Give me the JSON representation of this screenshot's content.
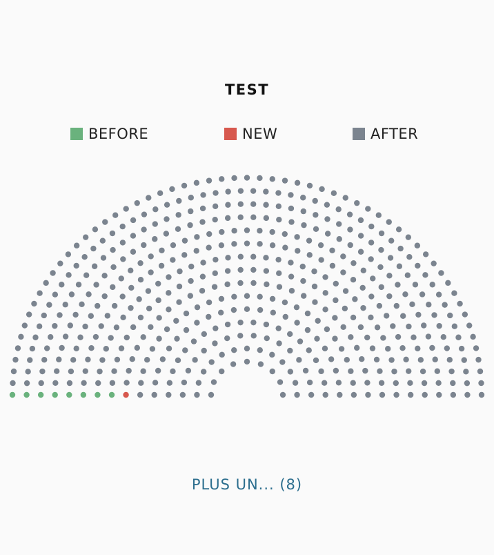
{
  "chart_data": {
    "type": "parliament",
    "title": "TEST",
    "legend_placement": "top",
    "series": [
      {
        "name": "BEFORE",
        "seats": 8,
        "color": "#6ab27d"
      },
      {
        "name": "NEW",
        "seats": 1,
        "color": "#d7584e"
      },
      {
        "name": "AFTER",
        "seats": 502,
        "color": "#7b848f"
      }
    ],
    "rows": 15,
    "total_seats": 511
  },
  "footer": {
    "link_label": "PLUS UN... (8)"
  }
}
